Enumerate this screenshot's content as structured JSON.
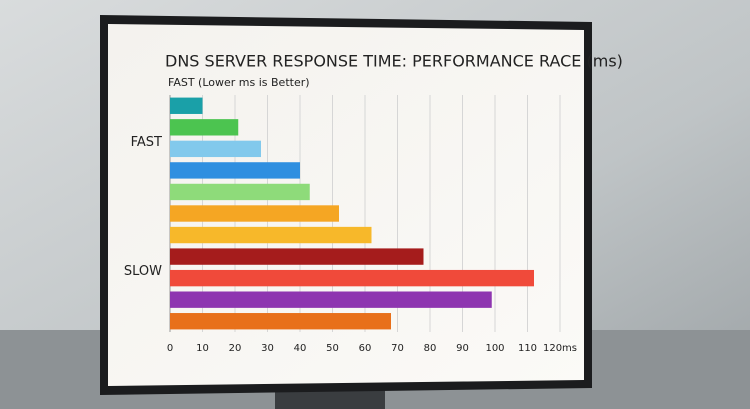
{
  "chart_data": {
    "type": "hbar",
    "title": "DNS SERVER RESPONSE TIME: PERFORMANCE RACE (ms)",
    "subtitle": "FAST (Lower ms is Better)",
    "categories": [
      null,
      null,
      "FAST",
      null,
      null,
      null,
      null,
      null,
      "SLOW",
      null,
      null
    ],
    "values": [
      10,
      21,
      28,
      40,
      43,
      52,
      62,
      78,
      112,
      99,
      68
    ],
    "colors": [
      "#1aa0a8",
      "#4cc450",
      "#82c9ec",
      "#2f8fe0",
      "#8edb7a",
      "#f5a623",
      "#f7b82a",
      "#a51c1c",
      "#f04a3a",
      "#8e35b0",
      "#e8701a"
    ],
    "xlim": [
      0,
      120
    ],
    "xticks": [
      0,
      10,
      20,
      30,
      40,
      50,
      60,
      70,
      80,
      90,
      100,
      110,
      {
        "value": 120,
        "label": "120ms"
      }
    ],
    "grid": true
  }
}
